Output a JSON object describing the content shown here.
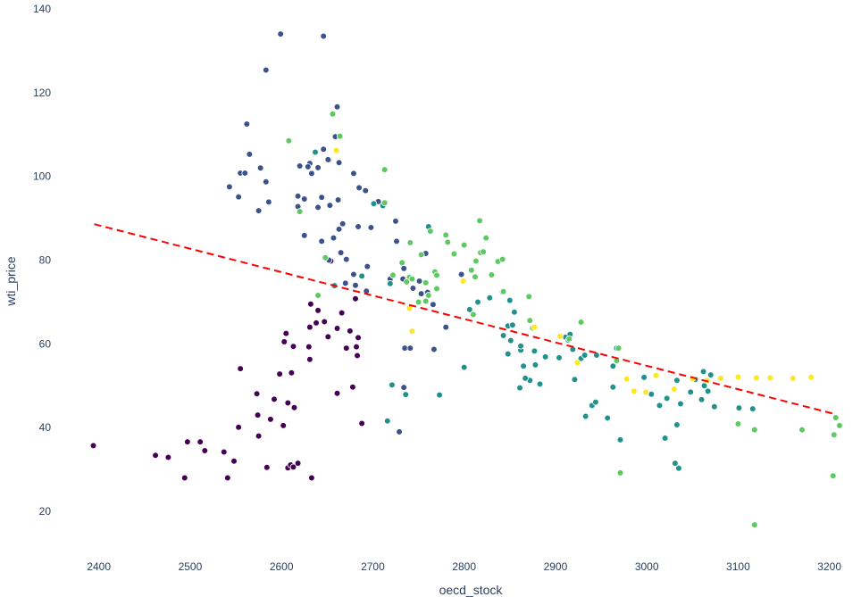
{
  "chart_data": {
    "type": "scatter",
    "title": "",
    "xlabel": "oecd_stock",
    "ylabel": "wti_price",
    "xlim": [
      2370,
      3215
    ],
    "ylim": [
      10,
      140
    ],
    "grid": false,
    "legend": "none",
    "x_ticks": [
      "2400",
      "2500",
      "2600",
      "2700",
      "2800",
      "2900",
      "3000",
      "3100",
      "3200"
    ],
    "y_ticks": [
      "20",
      "40",
      "60",
      "80",
      "100",
      "120",
      "140"
    ],
    "colorscale": [
      "#440154",
      "#3b528b",
      "#21918c",
      "#5ec962",
      "#fde725"
    ],
    "trendline": {
      "color": "#ff0000",
      "style": "dashed",
      "x": [
        2395,
        3205
      ],
      "y": [
        88.6,
        43.3
      ]
    },
    "points": [
      [
        2394,
        35.7,
        0
      ],
      [
        2462,
        33.4,
        0
      ],
      [
        2476,
        32.9,
        0
      ],
      [
        2494,
        28.0,
        0
      ],
      [
        2497,
        36.6,
        0
      ],
      [
        2511,
        36.6,
        0
      ],
      [
        2516,
        34.5,
        0
      ],
      [
        2537,
        34.2,
        0
      ],
      [
        2541,
        28.0,
        0
      ],
      [
        2548,
        32.0,
        0
      ],
      [
        2553,
        40.1,
        0
      ],
      [
        2555,
        54.1,
        0
      ],
      [
        2575,
        38.0,
        0
      ],
      [
        2574,
        43.0,
        0
      ],
      [
        2573,
        48.1,
        0
      ],
      [
        2584,
        30.5,
        0
      ],
      [
        2588,
        42.0,
        0
      ],
      [
        2592,
        46.8,
        0
      ],
      [
        2598,
        52.8,
        0
      ],
      [
        2602,
        40.5,
        0
      ],
      [
        2603,
        60.5,
        0
      ],
      [
        2605,
        62.5,
        0
      ],
      [
        2607,
        45.9,
        0
      ],
      [
        2607,
        30.4,
        0
      ],
      [
        2610,
        31.1,
        0
      ],
      [
        2611,
        53.1,
        0
      ],
      [
        2613,
        59.4,
        0
      ],
      [
        2613,
        30.6,
        0
      ],
      [
        2614,
        44.8,
        0
      ],
      [
        2618,
        31.5,
        0
      ],
      [
        2630,
        59.3,
        0
      ],
      [
        2631,
        56.3,
        0
      ],
      [
        2631,
        64.0,
        0
      ],
      [
        2632,
        69.5,
        0
      ],
      [
        2633,
        28.0,
        0
      ],
      [
        2638,
        65.0,
        0
      ],
      [
        2640,
        68.0,
        0
      ],
      [
        2647,
        65.3,
        0
      ],
      [
        2651,
        61.7,
        0
      ],
      [
        2654,
        79.8,
        0
      ],
      [
        2661,
        48.2,
        0
      ],
      [
        2661,
        63.7,
        0
      ],
      [
        2666,
        67.4,
        0
      ],
      [
        2671,
        59.0,
        0
      ],
      [
        2675,
        63.1,
        0
      ],
      [
        2678,
        49.7,
        0
      ],
      [
        2681,
        70.8,
        0
      ],
      [
        2682,
        59.3,
        0
      ],
      [
        2683,
        57.2,
        0
      ],
      [
        2684,
        61.5,
        0
      ],
      [
        2688,
        41.0,
        0
      ],
      [
        2599,
        134.0,
        1
      ],
      [
        2646,
        133.5,
        1
      ],
      [
        2583,
        125.4,
        1
      ],
      [
        2661,
        116.6,
        1
      ],
      [
        2562,
        112.5,
        1
      ],
      [
        2659,
        109.5,
        1
      ],
      [
        2565,
        105.3,
        1
      ],
      [
        2646,
        106.5,
        1
      ],
      [
        2652,
        103.9,
        1
      ],
      [
        2577,
        102.0,
        1
      ],
      [
        2631,
        103.1,
        1
      ],
      [
        2629,
        102.3,
        1
      ],
      [
        2640,
        102.1,
        1
      ],
      [
        2555,
        100.8,
        1
      ],
      [
        2560,
        100.8,
        1
      ],
      [
        2633,
        100.7,
        1
      ],
      [
        2620,
        102.5,
        1
      ],
      [
        2679,
        100.7,
        1
      ],
      [
        2583,
        98.7,
        1
      ],
      [
        2543,
        97.5,
        1
      ],
      [
        2685,
        97.3,
        1
      ],
      [
        2692,
        96.6,
        1
      ],
      [
        2553,
        95.1,
        1
      ],
      [
        2618,
        95.3,
        1
      ],
      [
        2625,
        94.6,
        1
      ],
      [
        2644,
        95.0,
        1
      ],
      [
        2662,
        94.4,
        1
      ],
      [
        2586,
        93.9,
        1
      ],
      [
        2575,
        91.8,
        1
      ],
      [
        2618,
        92.8,
        1
      ],
      [
        2640,
        92.6,
        1
      ],
      [
        2653,
        93.1,
        1
      ],
      [
        2706,
        94.0,
        1
      ],
      [
        2698,
        87.8,
        1
      ],
      [
        2684,
        88.0,
        1
      ],
      [
        2667,
        88.7,
        1
      ],
      [
        2663,
        87.4,
        1
      ],
      [
        2625,
        85.9,
        1
      ],
      [
        2657,
        85.3,
        1
      ],
      [
        2644,
        84.5,
        1
      ],
      [
        2665,
        81.8,
        1
      ],
      [
        2671,
        80.2,
        1
      ],
      [
        2652,
        80.0,
        1
      ],
      [
        2679,
        76.6,
        1
      ],
      [
        2694,
        78.5,
        1
      ],
      [
        2693,
        72.6,
        1
      ],
      [
        2670,
        74.5,
        1
      ],
      [
        2681,
        74.0,
        1
      ],
      [
        2719,
        75.5,
        1
      ],
      [
        2733,
        75.5,
        1
      ],
      [
        2744,
        73.3,
        1
      ],
      [
        2751,
        75.0,
        1
      ],
      [
        2760,
        72.3,
        1
      ],
      [
        2758,
        81.6,
        1
      ],
      [
        2766,
        69.4,
        1
      ],
      [
        2735,
        59.0,
        1
      ],
      [
        2741,
        59.0,
        1
      ],
      [
        2729,
        39.0,
        1
      ],
      [
        2734,
        49.6,
        1
      ],
      [
        2780,
        64.0,
        1
      ],
      [
        2767,
        58.7,
        1
      ],
      [
        2797,
        76.6,
        1
      ],
      [
        2753,
        72.0,
        1
      ],
      [
        2734,
        78.0,
        1
      ],
      [
        2726,
        84.5,
        1
      ],
      [
        2725,
        89.3,
        1
      ],
      [
        2651,
        104.0,
        1
      ],
      [
        2663,
        103.3,
        1
      ],
      [
        2637,
        105.8,
        2
      ],
      [
        2701,
        93.5,
        2
      ],
      [
        2711,
        93.0,
        2
      ],
      [
        2658,
        73.9,
        2
      ],
      [
        2688,
        76.2,
        2
      ],
      [
        2721,
        50.2,
        2
      ],
      [
        2716,
        41.6,
        2
      ],
      [
        2719,
        74.4,
        2
      ],
      [
        2736,
        47.9,
        2
      ],
      [
        2773,
        47.8,
        2
      ],
      [
        2761,
        88.0,
        2
      ],
      [
        2800,
        54.4,
        2
      ],
      [
        2806,
        68.2,
        2
      ],
      [
        2815,
        70.0,
        2
      ],
      [
        2828,
        71.0,
        2
      ],
      [
        2842,
        72.4,
        2
      ],
      [
        2850,
        70.4,
        2
      ],
      [
        2843,
        62.0,
        2
      ],
      [
        2848,
        57.6,
        2
      ],
      [
        2851,
        60.8,
        2
      ],
      [
        2848,
        64.3,
        2
      ],
      [
        2853,
        64.5,
        2
      ],
      [
        2855,
        67.6,
        2
      ],
      [
        2862,
        58.5,
        2
      ],
      [
        2865,
        54.7,
        2
      ],
      [
        2862,
        59.5,
        2
      ],
      [
        2872,
        51.3,
        2
      ],
      [
        2878,
        55.0,
        2
      ],
      [
        2883,
        50.4,
        2
      ],
      [
        2861,
        49.5,
        2
      ],
      [
        2867,
        51.8,
        2
      ],
      [
        2877,
        58.3,
        2
      ],
      [
        2889,
        56.9,
        2
      ],
      [
        2904,
        56.7,
        2
      ],
      [
        2911,
        61.6,
        2
      ],
      [
        2914,
        60.9,
        2
      ],
      [
        2916,
        62.3,
        2
      ],
      [
        2921,
        51.5,
        2
      ],
      [
        2919,
        58.7,
        2
      ],
      [
        2928,
        56.5,
        2
      ],
      [
        2932,
        57.3,
        2
      ],
      [
        2933,
        42.7,
        2
      ],
      [
        2940,
        45.3,
        2
      ],
      [
        2944,
        46.1,
        2
      ],
      [
        2945,
        57.3,
        2
      ],
      [
        2957,
        42.3,
        2
      ],
      [
        2963,
        49.7,
        2
      ],
      [
        2963,
        54.7,
        2
      ],
      [
        2967,
        59.0,
        2
      ],
      [
        2971,
        37.1,
        2
      ],
      [
        2997,
        52.0,
        2
      ],
      [
        3005,
        48.0,
        2
      ],
      [
        3014,
        45.3,
        2
      ],
      [
        3020,
        37.5,
        2
      ],
      [
        3022,
        47.0,
        2
      ],
      [
        3033,
        51.3,
        2
      ],
      [
        3037,
        45.7,
        2
      ],
      [
        3031,
        31.5,
        2
      ],
      [
        3035,
        30.3,
        2
      ],
      [
        3033,
        40.7,
        2
      ],
      [
        3048,
        48.5,
        2
      ],
      [
        3053,
        51.5,
        2
      ],
      [
        3060,
        46.7,
        2
      ],
      [
        3063,
        50.0,
        2
      ],
      [
        3062,
        53.4,
        2
      ],
      [
        3067,
        48.7,
        2
      ],
      [
        3070,
        52.6,
        2
      ],
      [
        3074,
        45.0,
        2
      ],
      [
        3101,
        44.7,
        2
      ],
      [
        3116,
        44.5,
        2
      ],
      [
        2608,
        108.5,
        3
      ],
      [
        2656,
        114.9,
        3
      ],
      [
        2664,
        109.6,
        3
      ],
      [
        2713,
        101.6,
        3
      ],
      [
        2713,
        93.7,
        3
      ],
      [
        2722,
        76.4,
        3
      ],
      [
        2732,
        79.4,
        3
      ],
      [
        2741,
        84.2,
        3
      ],
      [
        2740,
        75.9,
        3
      ],
      [
        2743,
        75.5,
        3
      ],
      [
        2753,
        81.3,
        3
      ],
      [
        2758,
        74.6,
        3
      ],
      [
        2758,
        70.2,
        3
      ],
      [
        2761,
        71.6,
        3
      ],
      [
        2763,
        86.9,
        3
      ],
      [
        2768,
        77.2,
        3
      ],
      [
        2770,
        73.2,
        3
      ],
      [
        2770,
        76.4,
        3
      ],
      [
        2780,
        86.0,
        3
      ],
      [
        2782,
        84.3,
        3
      ],
      [
        2789,
        81.5,
        3
      ],
      [
        2800,
        83.6,
        3
      ],
      [
        2808,
        77.6,
        3
      ],
      [
        2812,
        76.0,
        3
      ],
      [
        2813,
        79.8,
        3
      ],
      [
        2817,
        89.4,
        3
      ],
      [
        2818,
        81.8,
        3
      ],
      [
        2821,
        82.0,
        3
      ],
      [
        2830,
        76.5,
        3
      ],
      [
        2824,
        85.3,
        3
      ],
      [
        2837,
        79.7,
        3
      ],
      [
        2842,
        80.2,
        3
      ],
      [
        2843,
        72.5,
        3
      ],
      [
        2871,
        71.3,
        3
      ],
      [
        2875,
        63.8,
        3
      ],
      [
        2872,
        65.6,
        3
      ],
      [
        2915,
        61.2,
        3
      ],
      [
        2928,
        65.2,
        3
      ],
      [
        2971,
        29.2,
        3
      ],
      [
        2969,
        59.0,
        3
      ],
      [
        2967,
        56.0,
        3
      ],
      [
        3100,
        40.9,
        3
      ],
      [
        3118,
        39.5,
        3
      ],
      [
        3118,
        16.8,
        3
      ],
      [
        3170,
        39.5,
        3
      ],
      [
        3204,
        28.5,
        3
      ],
      [
        3205,
        38.3,
        3
      ],
      [
        3207,
        42.4,
        3
      ],
      [
        3211,
        40.5,
        3
      ],
      [
        2620,
        91.6,
        3
      ],
      [
        2640,
        71.6,
        3
      ],
      [
        2648,
        80.6,
        3
      ],
      [
        2737,
        74.8,
        3
      ],
      [
        2750,
        70.0,
        3
      ],
      [
        2810,
        67.0,
        3
      ],
      [
        2660,
        106.2,
        4
      ],
      [
        2740,
        68.5,
        4
      ],
      [
        2743,
        63.0,
        4
      ],
      [
        2799,
        75.0,
        4
      ],
      [
        2877,
        64.0,
        4
      ],
      [
        2905,
        61.8,
        4
      ],
      [
        2924,
        55.5,
        4
      ],
      [
        2978,
        51.6,
        4
      ],
      [
        2986,
        48.7,
        4
      ],
      [
        2999,
        48.5,
        4
      ],
      [
        3010,
        52.5,
        4
      ],
      [
        3030,
        49.2,
        4
      ],
      [
        3050,
        51.7,
        4
      ],
      [
        3066,
        51.3,
        4
      ],
      [
        3081,
        51.8,
        4
      ],
      [
        3100,
        52.1,
        4
      ],
      [
        3120,
        51.9,
        4
      ],
      [
        3135,
        51.9,
        4
      ],
      [
        3160,
        51.8,
        4
      ],
      [
        3180,
        52.0,
        4
      ]
    ]
  }
}
